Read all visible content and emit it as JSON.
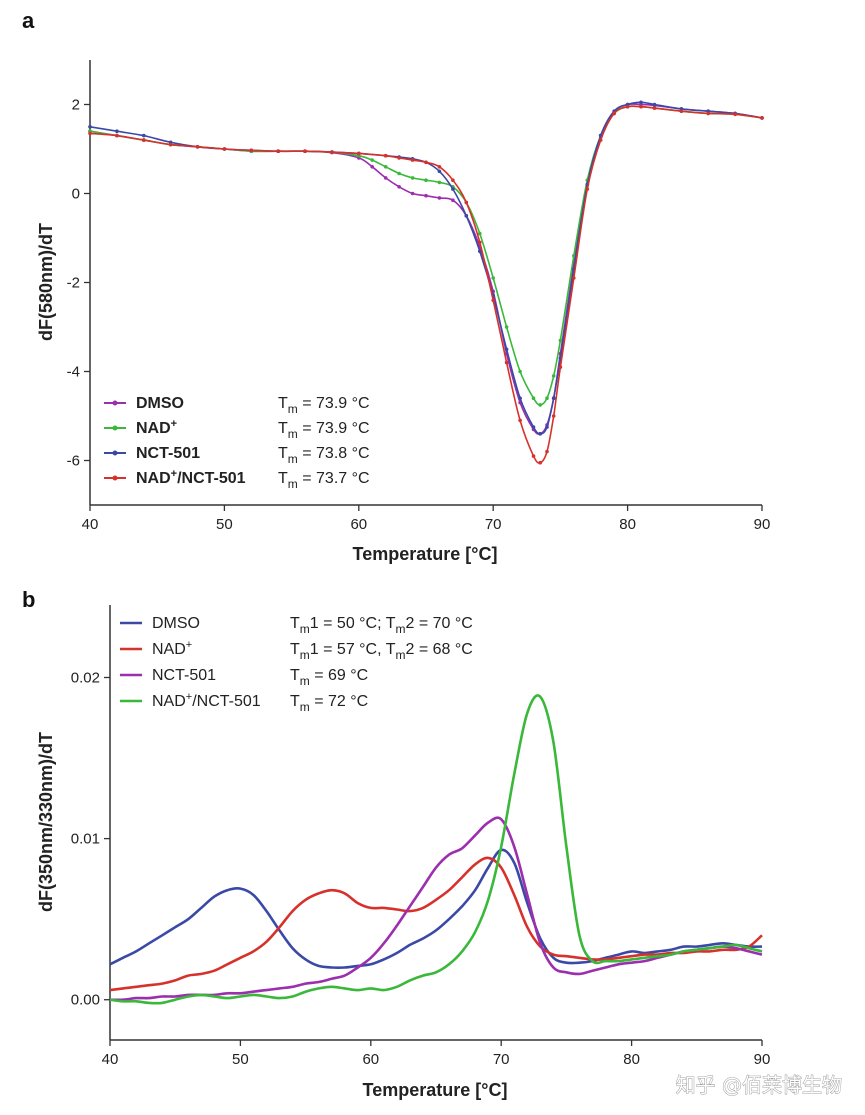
{
  "watermark": "知乎 @佰莱博生物",
  "chart_data": [
    {
      "panel": "a",
      "type": "line",
      "xlabel": "Temperature [°C]",
      "ylabel": "dF(580nm)/dT",
      "xlim": [
        40,
        90
      ],
      "ylim": [
        -7,
        3
      ],
      "xticks": [
        40,
        50,
        60,
        70,
        80,
        90
      ],
      "yticks": [
        -6,
        -4,
        -2,
        0,
        2
      ],
      "markers": true,
      "legend_position": "lower-left",
      "series": [
        {
          "name": "DMSO",
          "tm": "73.9 °C",
          "color": "#9b2fae",
          "x": [
            40,
            42,
            44,
            46,
            48,
            50,
            52,
            54,
            56,
            58,
            60,
            61,
            62,
            63,
            64,
            65,
            66,
            67,
            68,
            69,
            70,
            71,
            72,
            73,
            73.5,
            74,
            74.5,
            75,
            76,
            77,
            78,
            79,
            80,
            81,
            82,
            84,
            86,
            88,
            90
          ],
          "y": [
            1.4,
            1.3,
            1.2,
            1.1,
            1.05,
            1.0,
            0.95,
            0.95,
            0.95,
            0.92,
            0.8,
            0.6,
            0.35,
            0.15,
            0.0,
            -0.05,
            -0.1,
            -0.15,
            -0.5,
            -1.2,
            -2.2,
            -3.6,
            -4.7,
            -5.3,
            -5.4,
            -5.2,
            -4.6,
            -3.6,
            -1.6,
            0.2,
            1.3,
            1.85,
            2.0,
            2.0,
            1.98,
            1.9,
            1.85,
            1.8,
            1.7
          ]
        },
        {
          "name": "NAD+",
          "tm": "73.9 °C",
          "color": "#39b83a",
          "x": [
            40,
            42,
            44,
            46,
            48,
            50,
            52,
            54,
            56,
            58,
            60,
            61,
            62,
            63,
            64,
            65,
            66,
            67,
            68,
            69,
            70,
            71,
            72,
            73,
            73.5,
            74,
            74.5,
            75,
            76,
            77,
            78,
            79,
            80,
            81,
            82,
            84,
            86,
            88,
            90
          ],
          "y": [
            1.4,
            1.3,
            1.2,
            1.1,
            1.05,
            1.0,
            0.95,
            0.95,
            0.95,
            0.93,
            0.85,
            0.75,
            0.6,
            0.45,
            0.35,
            0.3,
            0.25,
            0.15,
            -0.2,
            -0.9,
            -1.9,
            -3.0,
            -4.0,
            -4.6,
            -4.75,
            -4.6,
            -4.1,
            -3.3,
            -1.4,
            0.3,
            1.3,
            1.8,
            1.95,
            1.95,
            1.92,
            1.85,
            1.8,
            1.78,
            1.7
          ]
        },
        {
          "name": "NCT-501",
          "tm": "73.8 °C",
          "color": "#3b49a6",
          "x": [
            40,
            42,
            44,
            46,
            48,
            50,
            52,
            54,
            56,
            58,
            60,
            62,
            63,
            64,
            65,
            66,
            67,
            68,
            69,
            70,
            71,
            72,
            73,
            73.5,
            74,
            74.5,
            75,
            76,
            77,
            78,
            79,
            80,
            81,
            82,
            84,
            86,
            88,
            90
          ],
          "y": [
            1.5,
            1.4,
            1.3,
            1.15,
            1.05,
            1.0,
            0.97,
            0.95,
            0.95,
            0.93,
            0.9,
            0.85,
            0.82,
            0.78,
            0.7,
            0.5,
            0.1,
            -0.5,
            -1.3,
            -2.3,
            -3.5,
            -4.6,
            -5.25,
            -5.4,
            -5.25,
            -4.6,
            -3.7,
            -1.7,
            0.2,
            1.3,
            1.85,
            2.0,
            2.05,
            2.0,
            1.9,
            1.85,
            1.8,
            1.7
          ]
        },
        {
          "name": "NAD+/NCT-501",
          "tm": "73.7 °C",
          "color": "#d6322b",
          "x": [
            40,
            42,
            44,
            46,
            48,
            50,
            52,
            54,
            56,
            58,
            60,
            62,
            63,
            64,
            65,
            66,
            67,
            68,
            69,
            70,
            71,
            72,
            73,
            73.5,
            74,
            74.5,
            75,
            76,
            77,
            78,
            79,
            80,
            81,
            82,
            84,
            86,
            88,
            90
          ],
          "y": [
            1.35,
            1.3,
            1.2,
            1.1,
            1.05,
            1.0,
            0.97,
            0.95,
            0.95,
            0.93,
            0.9,
            0.85,
            0.8,
            0.75,
            0.7,
            0.6,
            0.3,
            -0.2,
            -1.1,
            -2.4,
            -3.8,
            -5.1,
            -5.9,
            -6.05,
            -5.8,
            -5.0,
            -3.9,
            -1.9,
            0.1,
            1.2,
            1.8,
            1.95,
            1.95,
            1.92,
            1.85,
            1.8,
            1.78,
            1.7
          ]
        }
      ]
    },
    {
      "panel": "b",
      "type": "line",
      "xlabel": "Temperature [°C]",
      "ylabel": "dF(350nm/330nm)/dT",
      "xlim": [
        40,
        90
      ],
      "ylim": [
        -0.0025,
        0.0245
      ],
      "xticks": [
        40,
        50,
        60,
        70,
        80,
        90
      ],
      "yticks": [
        0.0,
        0.01,
        0.02
      ],
      "yticklabels": [
        "0.00",
        "0.01",
        "0.02"
      ],
      "markers": false,
      "legend_position": "upper-left",
      "series": [
        {
          "name": "DMSO",
          "tm": "Tm1 = 50 °C; Tm2 = 70 °C",
          "color": "#3b49a6",
          "x": [
            40,
            41,
            42,
            43,
            44,
            45,
            46,
            47,
            48,
            49,
            50,
            51,
            52,
            53,
            54,
            55,
            56,
            57,
            58,
            59,
            60,
            61,
            62,
            63,
            64,
            65,
            66,
            67,
            68,
            69,
            70,
            71,
            72,
            73,
            74,
            75,
            76,
            77,
            78,
            79,
            80,
            81,
            82,
            83,
            84,
            85,
            86,
            87,
            88,
            89,
            90
          ],
          "y": [
            0.0022,
            0.0026,
            0.003,
            0.0035,
            0.004,
            0.0045,
            0.005,
            0.0057,
            0.0064,
            0.0068,
            0.0069,
            0.0065,
            0.0055,
            0.0043,
            0.0032,
            0.0025,
            0.0021,
            0.002,
            0.002,
            0.0021,
            0.0022,
            0.0025,
            0.0029,
            0.0034,
            0.0038,
            0.0043,
            0.005,
            0.0058,
            0.0068,
            0.0082,
            0.0093,
            0.0085,
            0.006,
            0.0038,
            0.0026,
            0.0023,
            0.0023,
            0.0024,
            0.0026,
            0.0028,
            0.003,
            0.0029,
            0.003,
            0.0031,
            0.0033,
            0.0033,
            0.0034,
            0.0035,
            0.0034,
            0.0033,
            0.0033
          ]
        },
        {
          "name": "NAD+",
          "tm": "Tm1 = 57 °C, Tm2 = 68 °C",
          "color": "#d6322b",
          "x": [
            40,
            41,
            42,
            43,
            44,
            45,
            46,
            47,
            48,
            49,
            50,
            51,
            52,
            53,
            54,
            55,
            56,
            57,
            58,
            59,
            60,
            61,
            62,
            63,
            64,
            65,
            66,
            67,
            68,
            69,
            70,
            71,
            72,
            73,
            74,
            75,
            76,
            77,
            78,
            79,
            80,
            81,
            82,
            83,
            84,
            85,
            86,
            87,
            88,
            89,
            90
          ],
          "y": [
            0.0006,
            0.0007,
            0.0008,
            0.0009,
            0.001,
            0.0012,
            0.0015,
            0.0016,
            0.0018,
            0.0022,
            0.0026,
            0.003,
            0.0036,
            0.0045,
            0.0055,
            0.0062,
            0.0066,
            0.0068,
            0.0066,
            0.006,
            0.0057,
            0.0057,
            0.0056,
            0.0055,
            0.0057,
            0.0062,
            0.0068,
            0.0076,
            0.0084,
            0.0088,
            0.0082,
            0.0065,
            0.0045,
            0.0033,
            0.0028,
            0.0027,
            0.0026,
            0.0025,
            0.0025,
            0.0026,
            0.0027,
            0.0028,
            0.0028,
            0.0029,
            0.0029,
            0.003,
            0.003,
            0.0031,
            0.0031,
            0.0033,
            0.004
          ]
        },
        {
          "name": "NCT-501",
          "tm": "Tm = 69 °C",
          "color": "#9b2fae",
          "x": [
            40,
            41,
            42,
            43,
            44,
            45,
            46,
            47,
            48,
            49,
            50,
            51,
            52,
            53,
            54,
            55,
            56,
            57,
            58,
            59,
            60,
            61,
            62,
            63,
            64,
            65,
            66,
            67,
            68,
            69,
            70,
            71,
            72,
            73,
            74,
            75,
            76,
            77,
            78,
            79,
            80,
            81,
            82,
            83,
            84,
            85,
            86,
            87,
            88,
            89,
            90
          ],
          "y": [
            0.0,
            0.0,
            0.0001,
            0.0001,
            0.0002,
            0.0002,
            0.0003,
            0.0003,
            0.0003,
            0.0004,
            0.0004,
            0.0005,
            0.0006,
            0.0007,
            0.0008,
            0.001,
            0.0011,
            0.0013,
            0.0015,
            0.002,
            0.0026,
            0.0035,
            0.0046,
            0.0058,
            0.007,
            0.0082,
            0.009,
            0.0094,
            0.0102,
            0.011,
            0.0112,
            0.0095,
            0.0065,
            0.0035,
            0.002,
            0.0017,
            0.0016,
            0.0018,
            0.002,
            0.0022,
            0.0023,
            0.0024,
            0.0026,
            0.0028,
            0.003,
            0.0031,
            0.0032,
            0.0033,
            0.0032,
            0.003,
            0.0028
          ]
        },
        {
          "name": "NAD+/NCT-501",
          "tm": "Tm = 72 °C",
          "color": "#39b83a",
          "x": [
            40,
            41,
            42,
            43,
            44,
            45,
            46,
            47,
            48,
            49,
            50,
            51,
            52,
            53,
            54,
            55,
            56,
            57,
            58,
            59,
            60,
            61,
            62,
            63,
            64,
            65,
            66,
            67,
            68,
            69,
            70,
            71,
            72,
            73,
            74,
            75,
            76,
            77,
            78,
            79,
            80,
            81,
            82,
            83,
            84,
            85,
            86,
            87,
            88,
            89,
            90
          ],
          "y": [
            0.0,
            -0.0001,
            -0.0001,
            -0.0002,
            -0.0002,
            0.0,
            0.0002,
            0.0003,
            0.0002,
            0.0001,
            0.0002,
            0.0003,
            0.0002,
            0.0001,
            0.0002,
            0.0005,
            0.0007,
            0.0008,
            0.0007,
            0.0006,
            0.0007,
            0.0006,
            0.0008,
            0.0012,
            0.0015,
            0.0017,
            0.0022,
            0.003,
            0.0042,
            0.0062,
            0.0095,
            0.014,
            0.0178,
            0.0188,
            0.016,
            0.0095,
            0.004,
            0.0024,
            0.0024,
            0.0024,
            0.0025,
            0.0026,
            0.0027,
            0.0028,
            0.003,
            0.0031,
            0.0032,
            0.0033,
            0.0034,
            0.0032,
            0.003
          ]
        }
      ]
    }
  ]
}
